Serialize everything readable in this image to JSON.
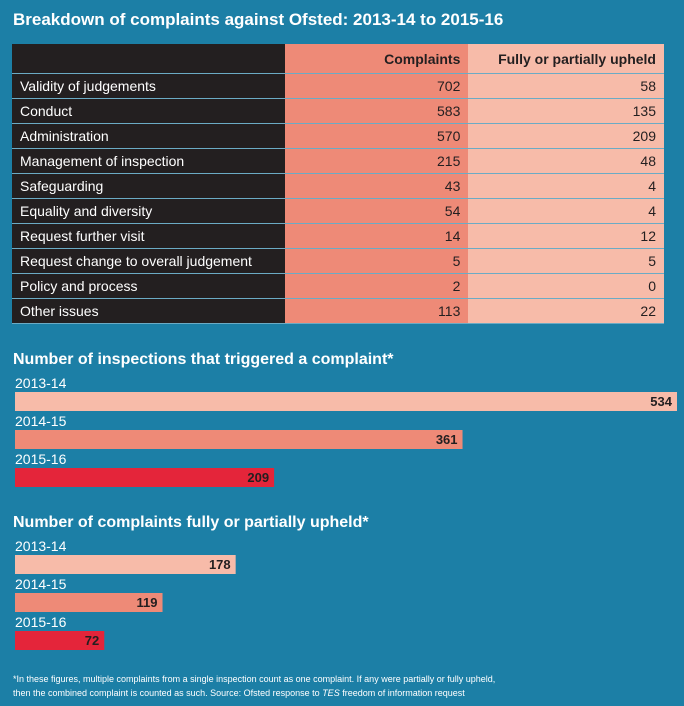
{
  "title": "Breakdown of complaints against Ofsted: 2013-14 to 2015-16",
  "table": {
    "headers": [
      "",
      "Complaints",
      "Fully or partially upheld"
    ],
    "rows": [
      {
        "category": "Validity of judgements",
        "complaints": 702,
        "upheld": 58
      },
      {
        "category": "Conduct",
        "complaints": 583,
        "upheld": 135
      },
      {
        "category": "Administration",
        "complaints": 570,
        "upheld": 209
      },
      {
        "category": "Management of inspection",
        "complaints": 215,
        "upheld": 48
      },
      {
        "category": "Safeguarding",
        "complaints": 43,
        "upheld": 4
      },
      {
        "category": "Equality and diversity",
        "complaints": 54,
        "upheld": 4
      },
      {
        "category": "Request further visit",
        "complaints": 14,
        "upheld": 12
      },
      {
        "category": "Request change to overall judgement",
        "complaints": 5,
        "upheld": 5
      },
      {
        "category": "Policy and process",
        "complaints": 2,
        "upheld": 0
      },
      {
        "category": "Other issues",
        "complaints": 113,
        "upheld": 22
      }
    ]
  },
  "colors": {
    "dark": "#231f20",
    "salmon": "#ee8a77",
    "light": "#f7bba9",
    "red": "#e4253a",
    "background": "#1c7fa6"
  },
  "chart_data": [
    {
      "type": "bar",
      "title": "Number of inspections that triggered a complaint*",
      "categories": [
        "2013-14",
        "2014-15",
        "2015-16"
      ],
      "values": [
        534,
        361,
        209
      ],
      "xlim": [
        0,
        534
      ]
    },
    {
      "type": "bar",
      "title": "Number of complaints fully or partially upheld*",
      "categories": [
        "2013-14",
        "2014-15",
        "2015-16"
      ],
      "values": [
        178,
        119,
        72
      ],
      "xlim": [
        0,
        534
      ]
    }
  ],
  "footnote": {
    "line1": "*In these figures, multiple complaints from a single inspection count as one complaint. If any were partially or fully upheld,",
    "line2_before": "then the combined complaint is counted as such. Source: Ofsted response to ",
    "line2_italic": "TES",
    "line2_after": " freedom of information request"
  }
}
